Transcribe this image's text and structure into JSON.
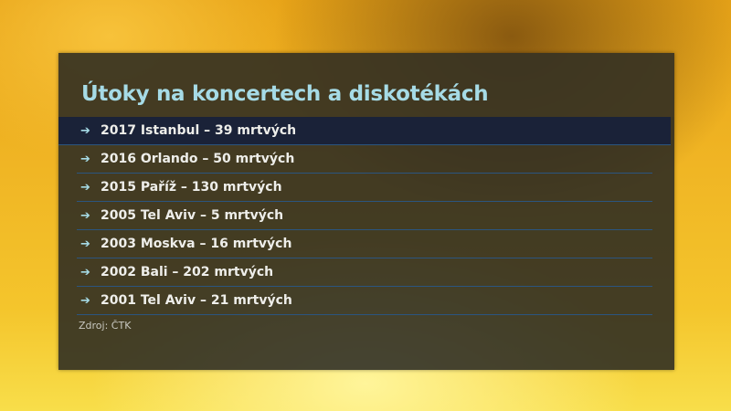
{
  "title": "Útoky na koncertech a diskotékách",
  "items": [
    {
      "text": "2017 Istanbul – 39 mrtvých"
    },
    {
      "text": "2016 Orlando – 50 mrtvých"
    },
    {
      "text": "2015 Paříž – 130 mrtvých"
    },
    {
      "text": "2005 Tel Aviv – 5 mrtvých"
    },
    {
      "text": "2003 Moskva – 16 mrtvých"
    },
    {
      "text": "2002 Bali – 202 mrtvých"
    },
    {
      "text": "2001 Tel Aviv – 21 mrtvých"
    }
  ],
  "bullet_icon": "arrow-right-icon",
  "source": "Zdroj: ČTK",
  "colors": {
    "title": "#a6dbe6",
    "separator": "#2b5580",
    "background": "#f0b524"
  }
}
